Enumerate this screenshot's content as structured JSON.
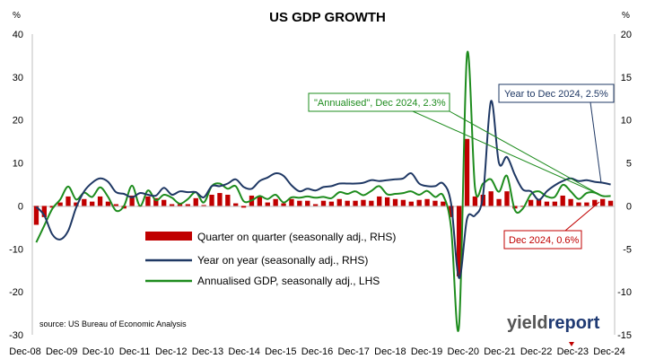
{
  "chart_data": {
    "type": "bar+line",
    "title": "US GDP GROWTH",
    "left_unit": "%",
    "right_unit": "%",
    "y_left_lim": [
      -30,
      40
    ],
    "y_right_lim": [
      -15,
      20
    ],
    "y_left_ticks": [
      "40",
      "30",
      "20",
      "10",
      "0",
      "-10",
      "-20",
      "-30"
    ],
    "y_right_ticks": [
      "20",
      "15",
      "10",
      "5",
      "0",
      "-5",
      "-10",
      "-15"
    ],
    "x_ticks": [
      "Dec-08",
      "Dec-09",
      "Dec-10",
      "Dec-11",
      "Dec-12",
      "Dec-13",
      "Dec-14",
      "Dec-15",
      "Dec-16",
      "Dec-17",
      "Dec-18",
      "Dec-19",
      "Dec-20",
      "Dec-21",
      "Dec-22",
      "Dec-23",
      "Dec-24"
    ],
    "grid": false,
    "source": "source: US Bureau of Economic Analysis",
    "series": [
      {
        "name": "Quarter on quarter (seasonally adj., RHS)",
        "type": "bar",
        "axis": "right",
        "color": "#c00000",
        "values": [
          -2.2,
          -1.3,
          -0.2,
          0.4,
          1.1,
          0.4,
          0.8,
          0.5,
          1.1,
          0.5,
          0.2,
          -0.3,
          1.2,
          0.0,
          1.1,
          0.9,
          0.7,
          0.2,
          0.2,
          0.2,
          0.9,
          0.1,
          1.3,
          1.5,
          1.3,
          0.3,
          -0.2,
          1.2,
          1.1,
          0.4,
          0.8,
          0.3,
          0.8,
          0.6,
          0.6,
          0.2,
          0.6,
          0.5,
          0.8,
          0.6,
          0.6,
          0.7,
          0.6,
          1.1,
          1.0,
          0.8,
          0.7,
          0.5,
          0.7,
          0.8,
          0.6,
          0.5,
          -1.3,
          -8.2,
          7.8,
          1.1,
          1.3,
          1.7,
          0.8,
          1.7,
          -0.3,
          -0.1,
          0.7,
          0.8,
          0.5,
          0.5,
          1.2,
          0.8,
          0.4,
          0.4,
          0.7,
          0.8,
          0.6
        ]
      },
      {
        "name": "Year on year (seasonally adj., RHS)",
        "type": "line",
        "axis": "right",
        "color": "#1f3864",
        "values": [
          -0.1,
          -1.1,
          -3.3,
          -3.9,
          -2.9,
          -0.2,
          1.7,
          2.7,
          3.2,
          2.8,
          1.6,
          1.4,
          1.0,
          1.5,
          1.3,
          1.2,
          2.1,
          1.3,
          1.7,
          1.6,
          1.6,
          1.0,
          2.3,
          2.3,
          2.6,
          3.1,
          2.2,
          2.0,
          2.9,
          3.3,
          3.8,
          3.5,
          2.4,
          1.7,
          2.0,
          1.8,
          2.2,
          2.3,
          2.6,
          2.6,
          2.6,
          2.7,
          3.0,
          2.9,
          3.0,
          3.1,
          3.2,
          3.8,
          2.6,
          2.3,
          2.3,
          2.6,
          0.3,
          -8.4,
          -1.5,
          -1.1,
          1.2,
          12.2,
          5.0,
          5.7,
          3.6,
          1.9,
          1.7,
          0.7,
          1.7,
          2.4,
          2.9,
          3.2,
          2.9,
          3.0,
          2.8,
          2.7,
          2.5
        ]
      },
      {
        "name": "Annualised GDP, seasonally adj., LHS",
        "type": "line",
        "axis": "left",
        "color": "#1e8c1e",
        "values": [
          -8.5,
          -4.6,
          -0.7,
          1.5,
          4.5,
          1.5,
          3.1,
          2.1,
          4.3,
          2.1,
          -1.1,
          0.0,
          4.7,
          0.0,
          3.6,
          1.3,
          2.6,
          1.9,
          0.5,
          1.6,
          3.2,
          0.8,
          4.6,
          5.2,
          4.0,
          4.6,
          1.1,
          1.3,
          2.3,
          1.6,
          2.6,
          0.8,
          2.0,
          1.9,
          2.2,
          1.9,
          2.1,
          1.8,
          3.2,
          2.8,
          3.4,
          2.5,
          3.5,
          4.6,
          2.7,
          2.8,
          3.0,
          3.4,
          2.6,
          3.5,
          2.1,
          2.4,
          -5.0,
          -28.0,
          35.3,
          4.2,
          5.2,
          6.2,
          3.3,
          7.0,
          -1.0,
          -0.6,
          2.7,
          3.4,
          2.2,
          2.1,
          4.9,
          3.4,
          1.6,
          3.0,
          3.1,
          2.3,
          2.3
        ]
      }
    ],
    "annotations": [
      {
        "text": "Year to Dec 2024, 2.5%",
        "color": "#1f3864"
      },
      {
        "text": "\"Annualised\", Dec 2024, 2.3%",
        "color": "#1e8c1e"
      },
      {
        "text": "Dec 2024, 0.6%",
        "color": "#c00000"
      }
    ],
    "logo": "yieldreport"
  }
}
